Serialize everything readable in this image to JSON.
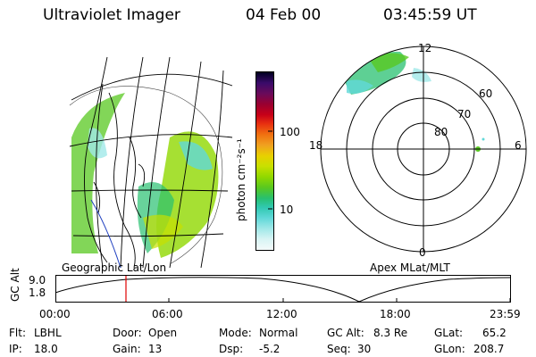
{
  "header": {
    "title": "Ultraviolet Imager",
    "date": "04 Feb 00",
    "time": "03:45:59 UT"
  },
  "left_panel": {
    "label": "Geographic Lat/Lon"
  },
  "colorbar": {
    "unit_label": "photon cm⁻²s⁻¹",
    "ticks": [
      "100",
      "10"
    ],
    "colors": [
      "#000020",
      "#3a0a6a",
      "#6a0a5a",
      "#9a0030",
      "#c80018",
      "#e83010",
      "#f07010",
      "#f0a020",
      "#e8d000",
      "#c8e000",
      "#90d800",
      "#58c820",
      "#28c070",
      "#30c8b0",
      "#60d8d8",
      "#a0e8e8",
      "#d8f4f4",
      "#f4fafa"
    ]
  },
  "polar_panel": {
    "label": "Apex MLat/MLT",
    "mlt_labels": {
      "top": "12",
      "left": "18",
      "right": "6",
      "bottom": "0"
    },
    "lat_labels": [
      "60",
      "70",
      "80"
    ]
  },
  "altitude_plot": {
    "ylabel": "GC Alt",
    "y_ticks": [
      "9.0",
      "1.8"
    ],
    "x_ticks": [
      "00:00",
      "06:00",
      "12:00",
      "18:00",
      "23:59"
    ],
    "marker_color": "#e00000"
  },
  "info": {
    "flt_label": "Flt:",
    "flt_value": "LBHL",
    "ip_label": "IP:",
    "ip_value": "18.0",
    "door_label": "Door:",
    "door_value": "Open",
    "gain_label": "Gain:",
    "gain_value": "13",
    "mode_label": "Mode:",
    "mode_value": "Normal",
    "dsp_label": "Dsp:",
    "dsp_value": "-5.2",
    "gcalt_label": "GC Alt:",
    "gcalt_value": "8.3 Re",
    "seq_label": "Seq:",
    "seq_value": "30",
    "glat_label": "GLat:",
    "glat_value": "65.2",
    "glon_label": "GLon:",
    "glon_value": "208.7"
  }
}
